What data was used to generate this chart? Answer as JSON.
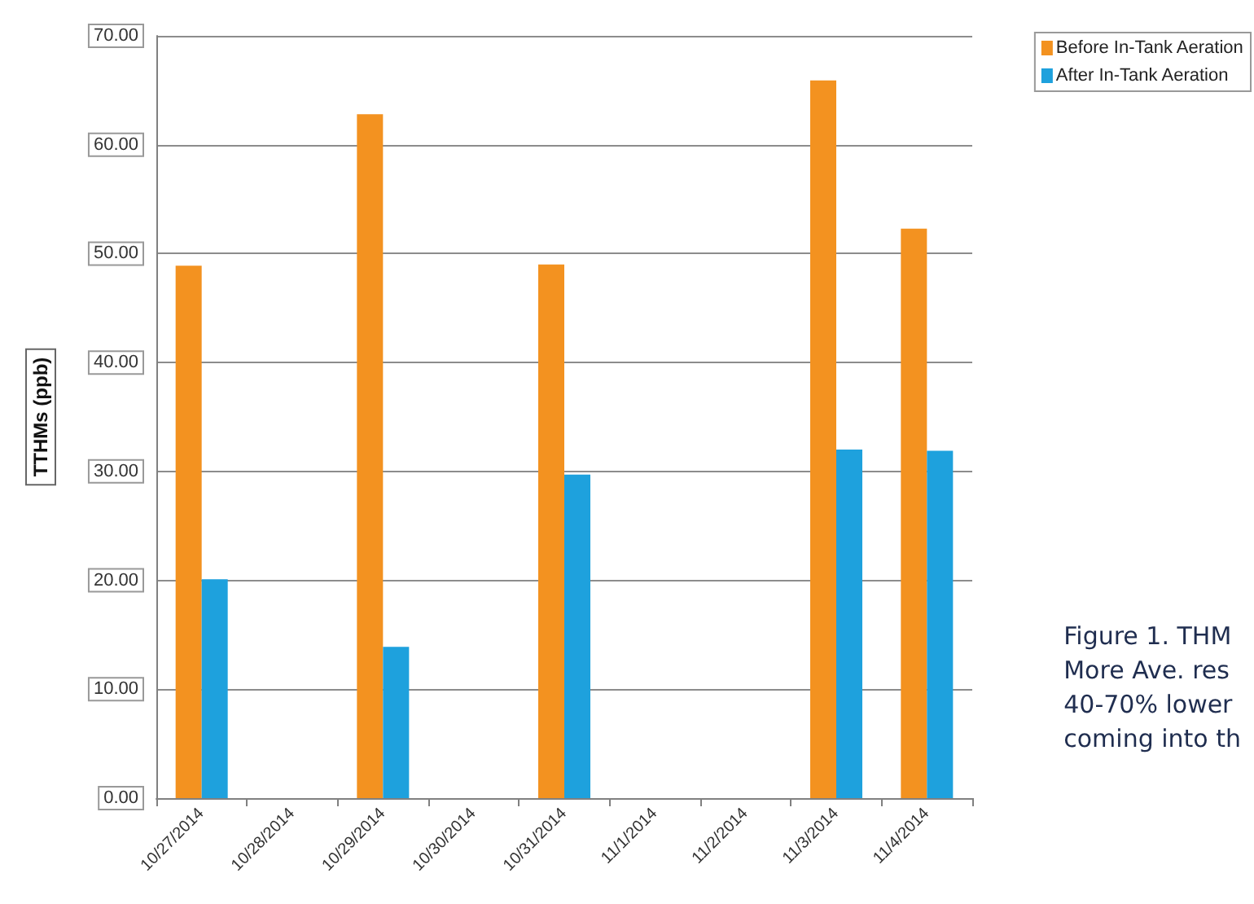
{
  "chart_data": {
    "type": "bar",
    "ylabel": "TTHMs (ppb)",
    "categories": [
      "10/27/2014",
      "10/28/2014",
      "10/29/2014",
      "10/30/2014",
      "10/31/2014",
      "11/1/2014",
      "11/2/2014",
      "11/3/2014",
      "11/4/2014"
    ],
    "series": [
      {
        "name": "Before In-Tank Aeration",
        "color": "#f39220",
        "values": [
          48.9,
          null,
          62.8,
          null,
          49.0,
          null,
          null,
          65.9,
          52.3
        ]
      },
      {
        "name": "After In-Tank Aeration",
        "color": "#1ea1dd",
        "values": [
          20.1,
          null,
          13.9,
          null,
          29.7,
          null,
          null,
          32.0,
          31.9
        ]
      }
    ],
    "ylim": [
      0,
      70
    ],
    "yticks": [
      {
        "value": 0,
        "label": "0.00"
      },
      {
        "value": 10,
        "label": "10.00"
      },
      {
        "value": 20,
        "label": "20.00"
      },
      {
        "value": 30,
        "label": "30.00"
      },
      {
        "value": 40,
        "label": "40.00"
      },
      {
        "value": 50,
        "label": "50.00"
      },
      {
        "value": 60,
        "label": "60.00"
      },
      {
        "value": 70,
        "label": "70.00"
      }
    ],
    "grid": "y",
    "legend": "top right",
    "annotations": [
      "Figure 1. THM\nMore Ave. res\n40-70% lower\ncoming into th"
    ]
  }
}
